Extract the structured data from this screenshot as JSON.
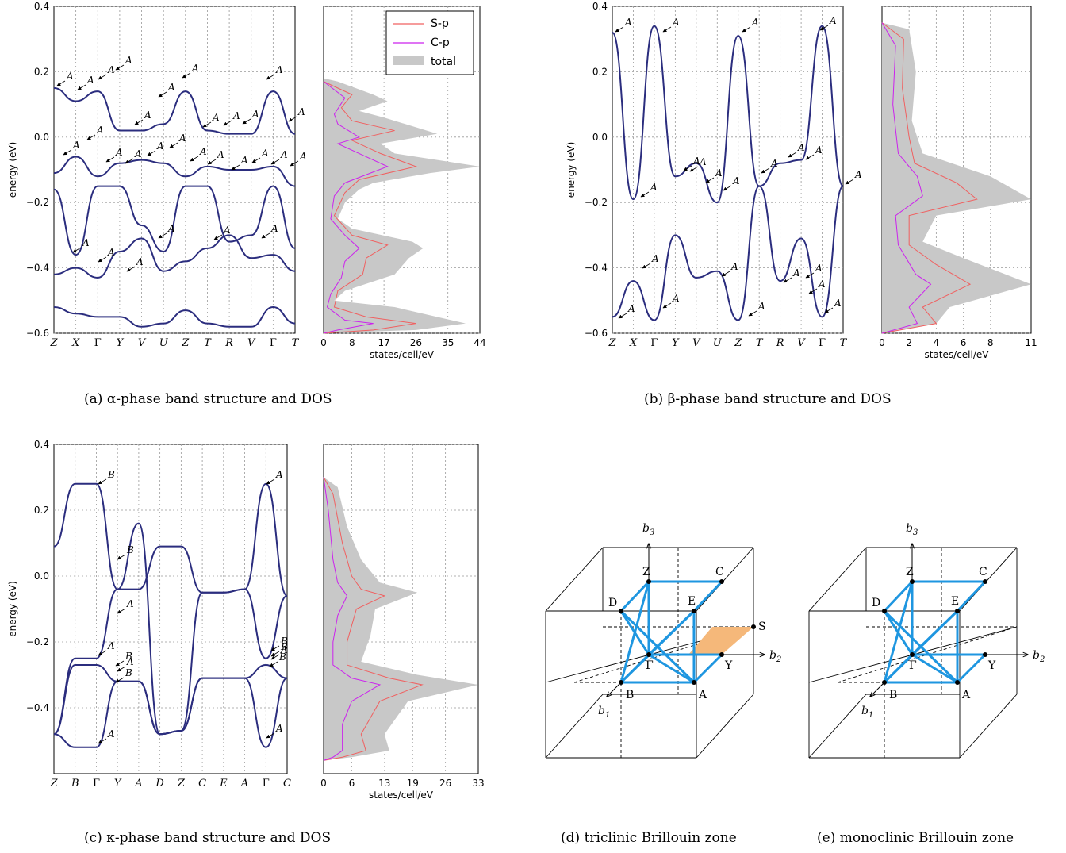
{
  "colors": {
    "band": "#2b2d7e",
    "sp": "#f06060",
    "cp": "#cc22ee",
    "total": "#c8c8c8",
    "bz_path": "#1e96e0",
    "bz_plane": "#f5b87a"
  },
  "panels": [
    {
      "caption_tag": "(a)",
      "caption_text": "α-phase band structure and DOS",
      "ylabel": "energy (eV)",
      "xlabel": "states/cell/eV",
      "yticks": [
        "0.4",
        "0.2",
        "0.0",
        "−0.2",
        "−0.4",
        "−0.6"
      ],
      "kpoints": [
        "Z",
        "X",
        "Γ",
        "Y",
        "V",
        "U",
        "Z",
        "T",
        "R",
        "V",
        "Γ",
        "T"
      ],
      "dos_ticks": [
        "0",
        "8",
        "17",
        "26",
        "35",
        "44"
      ],
      "legend": [
        "S-p",
        "C-p",
        "total"
      ],
      "irrep_labels": [
        "A",
        "A",
        "A",
        "A",
        "A",
        "A",
        "A",
        "A",
        "A",
        "A",
        "A",
        "A",
        "A",
        "A",
        "A",
        "A",
        "A",
        "A",
        "A",
        "A",
        "A",
        "A",
        "A",
        "A",
        "A",
        "A",
        "A",
        "A",
        "A",
        "A"
      ]
    },
    {
      "caption_tag": "(b)",
      "caption_text": "β-phase band structure and DOS",
      "ylabel": "energy (eV)",
      "xlabel": "states/cell/eV",
      "yticks": [
        "0.4",
        "0.2",
        "0.0",
        "−0.2",
        "−0.4",
        "−0.6"
      ],
      "kpoints": [
        "Z",
        "X",
        "Γ",
        "Y",
        "V",
        "U",
        "Z",
        "T",
        "R",
        "V",
        "Γ",
        "T"
      ],
      "dos_ticks": [
        "0",
        "2",
        "4",
        "6",
        "8",
        "11"
      ],
      "irrep_labels": [
        "A",
        "A",
        "A",
        "A",
        "A",
        "A",
        "A",
        "A",
        "A",
        "A",
        "A",
        "A",
        "A",
        "A",
        "A",
        "A",
        "A",
        "A",
        "A",
        "A",
        "A",
        "A"
      ]
    },
    {
      "caption_tag": "(c)",
      "caption_text": "κ-phase band structure and DOS",
      "ylabel": "energy (eV)",
      "xlabel": "states/cell/eV",
      "yticks": [
        "0.4",
        "0.2",
        "0.0",
        "−0.2",
        "−0.4"
      ],
      "kpoints": [
        "Z",
        "B",
        "Γ",
        "Y",
        "A",
        "D",
        "Z",
        "C",
        "E",
        "A",
        "Γ",
        "C"
      ],
      "dos_ticks": [
        "0",
        "6",
        "13",
        "19",
        "26",
        "33"
      ],
      "irrep_labels": [
        "B",
        "B",
        "A",
        "A",
        "B",
        "B",
        "A",
        "A",
        "B",
        "A",
        "A",
        "B",
        "A",
        "B"
      ]
    },
    {
      "caption_tag": "(d)",
      "caption_text": "triclinic Brillouin zone",
      "points": [
        "Z",
        "C",
        "D",
        "E",
        "S",
        "Γ",
        "Y",
        "B",
        "A"
      ],
      "axes": [
        "b",
        "b",
        "b"
      ]
    },
    {
      "caption_tag": "(e)",
      "caption_text": "monoclinic Brillouin zone",
      "points": [
        "Z",
        "C",
        "D",
        "E",
        "Γ",
        "Y",
        "B",
        "A"
      ],
      "axes": [
        "b",
        "b",
        "b"
      ]
    }
  ],
  "chart_data": [
    {
      "type": "line",
      "title": "",
      "xlabel": "",
      "ylabel": "energy (eV)",
      "ylim": [
        -0.6,
        0.4
      ],
      "categories": [
        "Z",
        "X",
        "Γ",
        "Y",
        "V",
        "U",
        "Z",
        "T",
        "R",
        "V",
        "Γ",
        "T"
      ],
      "series": [
        {
          "values": [
            0.15,
            0.11,
            0.14,
            0.02,
            0.02,
            0.04,
            0.14,
            0.02,
            0.01,
            0.01,
            0.14,
            0.01
          ]
        },
        {
          "values": [
            -0.11,
            -0.06,
            -0.12,
            -0.08,
            -0.07,
            -0.08,
            -0.12,
            -0.09,
            -0.1,
            -0.1,
            -0.09,
            -0.15
          ]
        },
        {
          "values": [
            -0.16,
            -0.36,
            -0.15,
            -0.15,
            -0.27,
            -0.35,
            -0.15,
            -0.15,
            -0.32,
            -0.3,
            -0.15,
            -0.34
          ]
        },
        {
          "values": [
            -0.42,
            -0.4,
            -0.43,
            -0.35,
            -0.31,
            -0.41,
            -0.38,
            -0.34,
            -0.3,
            -0.37,
            -0.36,
            -0.41
          ]
        },
        {
          "values": [
            -0.52,
            -0.54,
            -0.55,
            -0.55,
            -0.58,
            -0.57,
            -0.53,
            -0.57,
            -0.58,
            -0.58,
            -0.52,
            -0.57
          ]
        }
      ]
    },
    {
      "type": "area",
      "xlabel": "states/cell/eV",
      "ylabel": "",
      "xlim": [
        0,
        44
      ],
      "ylim": [
        -0.6,
        0.4
      ],
      "series": [
        {
          "name": "total",
          "points": [
            [
              0,
              0.18
            ],
            [
              4,
              0.17
            ],
            [
              14,
              0.13
            ],
            [
              18,
              0.11
            ],
            [
              10,
              0.08
            ],
            [
              17,
              0.06
            ],
            [
              20,
              0.05
            ],
            [
              32,
              0.01
            ],
            [
              16,
              -0.02
            ],
            [
              20,
              -0.05
            ],
            [
              44,
              -0.09
            ],
            [
              30,
              -0.11
            ],
            [
              14,
              -0.14
            ],
            [
              10,
              -0.16
            ],
            [
              6,
              -0.2
            ],
            [
              4,
              -0.25
            ],
            [
              8,
              -0.28
            ],
            [
              25,
              -0.32
            ],
            [
              28,
              -0.34
            ],
            [
              24,
              -0.37
            ],
            [
              20,
              -0.42
            ],
            [
              6,
              -0.47
            ],
            [
              3,
              -0.5
            ],
            [
              20,
              -0.52
            ],
            [
              40,
              -0.57
            ],
            [
              26,
              -0.59
            ],
            [
              0,
              -0.6
            ]
          ]
        },
        {
          "name": "S-p",
          "points": [
            [
              0,
              0.17
            ],
            [
              8,
              0.13
            ],
            [
              5,
              0.09
            ],
            [
              8,
              0.05
            ],
            [
              20,
              0.02
            ],
            [
              8,
              -0.01
            ],
            [
              16,
              -0.05
            ],
            [
              26,
              -0.09
            ],
            [
              10,
              -0.13
            ],
            [
              6,
              -0.17
            ],
            [
              3,
              -0.24
            ],
            [
              8,
              -0.3
            ],
            [
              18,
              -0.33
            ],
            [
              12,
              -0.37
            ],
            [
              11,
              -0.42
            ],
            [
              4,
              -0.47
            ],
            [
              3,
              -0.52
            ],
            [
              12,
              -0.55
            ],
            [
              26,
              -0.57
            ],
            [
              14,
              -0.59
            ],
            [
              0,
              -0.6
            ]
          ]
        },
        {
          "name": "C-p",
          "points": [
            [
              0,
              0.17
            ],
            [
              6,
              0.12
            ],
            [
              3,
              0.07
            ],
            [
              4,
              0.04
            ],
            [
              10,
              0.0
            ],
            [
              4,
              -0.02
            ],
            [
              12,
              -0.06
            ],
            [
              18,
              -0.09
            ],
            [
              6,
              -0.14
            ],
            [
              3,
              -0.18
            ],
            [
              2,
              -0.25
            ],
            [
              6,
              -0.3
            ],
            [
              10,
              -0.34
            ],
            [
              6,
              -0.38
            ],
            [
              5,
              -0.43
            ],
            [
              2,
              -0.48
            ],
            [
              1,
              -0.52
            ],
            [
              6,
              -0.56
            ],
            [
              14,
              -0.57
            ],
            [
              4,
              -0.59
            ],
            [
              0,
              -0.6
            ]
          ]
        }
      ]
    },
    {
      "type": "line",
      "xlabel": "",
      "ylabel": "energy (eV)",
      "ylim": [
        -0.6,
        0.4
      ],
      "categories": [
        "Z",
        "X",
        "Γ",
        "Y",
        "V",
        "U",
        "Z",
        "T",
        "R",
        "V",
        "Γ",
        "T"
      ],
      "series": [
        {
          "values": [
            0.32,
            -0.19,
            0.34,
            -0.12,
            -0.08,
            -0.2,
            0.31,
            -0.15,
            -0.08,
            -0.07,
            0.34,
            -0.15
          ]
        },
        {
          "values": [
            -0.55,
            -0.44,
            -0.56,
            -0.3,
            -0.43,
            -0.41,
            -0.56,
            -0.15,
            -0.44,
            -0.31,
            -0.55,
            -0.15
          ]
        }
      ]
    },
    {
      "type": "area",
      "xlabel": "states/cell/eV",
      "xlim": [
        0,
        11
      ],
      "ylim": [
        -0.6,
        0.4
      ],
      "series": [
        {
          "name": "total",
          "points": [
            [
              0,
              0.35
            ],
            [
              2,
              0.33
            ],
            [
              2.5,
              0.2
            ],
            [
              2.2,
              0.05
            ],
            [
              3,
              -0.05
            ],
            [
              8,
              -0.12
            ],
            [
              11,
              -0.19
            ],
            [
              4,
              -0.24
            ],
            [
              3,
              -0.32
            ],
            [
              6,
              -0.37
            ],
            [
              11,
              -0.45
            ],
            [
              5,
              -0.52
            ],
            [
              4,
              -0.57
            ],
            [
              0,
              -0.6
            ]
          ]
        },
        {
          "name": "S-p",
          "points": [
            [
              0,
              0.35
            ],
            [
              1.6,
              0.3
            ],
            [
              1.5,
              0.15
            ],
            [
              2,
              0.0
            ],
            [
              2.4,
              -0.08
            ],
            [
              5.5,
              -0.14
            ],
            [
              7,
              -0.19
            ],
            [
              2,
              -0.24
            ],
            [
              2,
              -0.33
            ],
            [
              4,
              -0.39
            ],
            [
              6.5,
              -0.45
            ],
            [
              3,
              -0.52
            ],
            [
              4,
              -0.57
            ],
            [
              0,
              -0.6
            ]
          ]
        },
        {
          "name": "C-p",
          "points": [
            [
              0,
              0.35
            ],
            [
              1,
              0.28
            ],
            [
              0.8,
              0.1
            ],
            [
              1.2,
              -0.05
            ],
            [
              2.6,
              -0.12
            ],
            [
              3,
              -0.18
            ],
            [
              1,
              -0.24
            ],
            [
              1.2,
              -0.33
            ],
            [
              2.5,
              -0.42
            ],
            [
              3.6,
              -0.45
            ],
            [
              2,
              -0.52
            ],
            [
              2.6,
              -0.57
            ],
            [
              0,
              -0.6
            ]
          ]
        }
      ]
    },
    {
      "type": "line",
      "xlabel": "",
      "ylabel": "energy (eV)",
      "ylim": [
        -0.6,
        0.4
      ],
      "categories": [
        "Z",
        "B",
        "Γ",
        "Y",
        "A",
        "D",
        "Z",
        "C",
        "E",
        "A",
        "Γ",
        "C"
      ],
      "series": [
        {
          "values": [
            0.09,
            0.28,
            0.28,
            -0.04,
            -0.04,
            0.09,
            0.09,
            -0.05,
            -0.05,
            -0.04,
            0.28,
            -0.06
          ]
        },
        {
          "values": [
            -0.48,
            -0.25,
            -0.25,
            -0.04,
            0.16,
            -0.48,
            -0.47,
            -0.05,
            -0.05,
            -0.04,
            -0.25,
            -0.06
          ]
        },
        {
          "values": [
            -0.48,
            -0.27,
            -0.27,
            -0.32,
            -0.32,
            -0.48,
            -0.47,
            -0.31,
            -0.31,
            -0.31,
            -0.27,
            -0.31
          ]
        },
        {
          "values": [
            -0.48,
            -0.52,
            -0.52,
            -0.32,
            -0.32,
            -0.48,
            -0.47,
            -0.31,
            -0.31,
            -0.31,
            -0.52,
            -0.31
          ]
        }
      ]
    },
    {
      "type": "area",
      "xlabel": "states/cell/eV",
      "xlim": [
        0,
        33
      ],
      "ylim": [
        -0.6,
        0.4
      ],
      "series": [
        {
          "name": "total",
          "points": [
            [
              0,
              0.3
            ],
            [
              3,
              0.27
            ],
            [
              5,
              0.15
            ],
            [
              8,
              0.05
            ],
            [
              12,
              -0.02
            ],
            [
              20,
              -0.05
            ],
            [
              11,
              -0.1
            ],
            [
              10,
              -0.18
            ],
            [
              8,
              -0.26
            ],
            [
              20,
              -0.3
            ],
            [
              33,
              -0.33
            ],
            [
              18,
              -0.38
            ],
            [
              13,
              -0.48
            ],
            [
              14,
              -0.53
            ],
            [
              6,
              -0.55
            ],
            [
              0,
              -0.56
            ]
          ]
        },
        {
          "name": "S-p",
          "points": [
            [
              0,
              0.3
            ],
            [
              2,
              0.25
            ],
            [
              4,
              0.1
            ],
            [
              6,
              0.0
            ],
            [
              8,
              -0.04
            ],
            [
              13,
              -0.06
            ],
            [
              7,
              -0.1
            ],
            [
              5,
              -0.2
            ],
            [
              5,
              -0.27
            ],
            [
              14,
              -0.31
            ],
            [
              21,
              -0.33
            ],
            [
              12,
              -0.38
            ],
            [
              8,
              -0.48
            ],
            [
              9,
              -0.53
            ],
            [
              4,
              -0.55
            ],
            [
              0,
              -0.56
            ]
          ]
        },
        {
          "name": "C-p",
          "points": [
            [
              0,
              0.3
            ],
            [
              1,
              0.2
            ],
            [
              2,
              0.05
            ],
            [
              3,
              -0.02
            ],
            [
              5,
              -0.06
            ],
            [
              3,
              -0.12
            ],
            [
              2,
              -0.2
            ],
            [
              2,
              -0.27
            ],
            [
              6,
              -0.31
            ],
            [
              12,
              -0.33
            ],
            [
              6,
              -0.38
            ],
            [
              4,
              -0.45
            ],
            [
              4,
              -0.53
            ],
            [
              2,
              -0.55
            ],
            [
              0,
              -0.56
            ]
          ]
        }
      ]
    }
  ]
}
